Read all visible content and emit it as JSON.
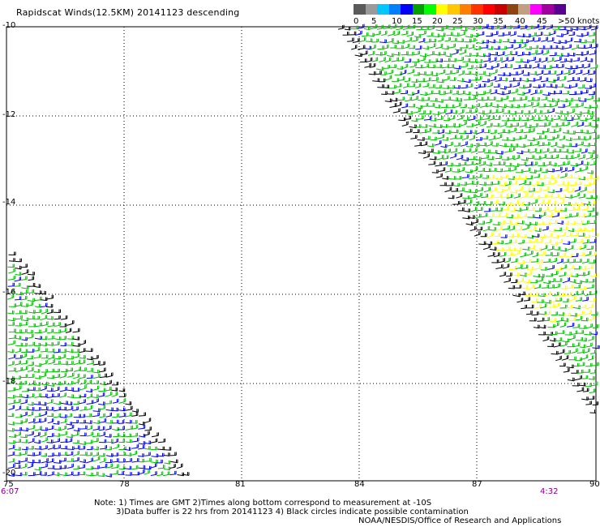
{
  "header": {
    "title": "Rapidscat Winds(12.5KM) 20141123 descending"
  },
  "legend": {
    "colors": [
      "#5a5a5a",
      "#9a9a9a",
      "#00c8ff",
      "#0080ff",
      "#0000ff",
      "#00a000",
      "#00ff00",
      "#ffff00",
      "#ffc800",
      "#ff8000",
      "#ff3200",
      "#ff0000",
      "#c80000",
      "#8b4513",
      "#c0a080",
      "#ff00ff",
      "#a000a0",
      "#5a0090"
    ],
    "labels": [
      "0",
      "5",
      "10",
      "15",
      "20",
      "25",
      "30",
      "35",
      "40",
      "45",
      ">50"
    ],
    "units": "knots"
  },
  "axes": {
    "lat_labels": [
      "-10",
      "-12",
      "-14",
      "-16",
      "-18",
      "-20"
    ],
    "lon_labels": [
      "75",
      "78",
      "81",
      "84",
      "87",
      "90"
    ]
  },
  "times": {
    "left": "6:07",
    "right": "4:32"
  },
  "notes": {
    "line1": "Note: 1) Times are GMT 2)Times along bottom correspond to measurement at -10S",
    "line2": "3)Data buffer is 22 hrs from 20141123 4) Black circles indicate possible contamination",
    "credit": "NOAA/NESDIS/Office of Research and Applications"
  },
  "wind_colors": {
    "calm": "#000000",
    "blue": "#0000ff",
    "green": "#00c000",
    "yellow": "#ffff00"
  }
}
